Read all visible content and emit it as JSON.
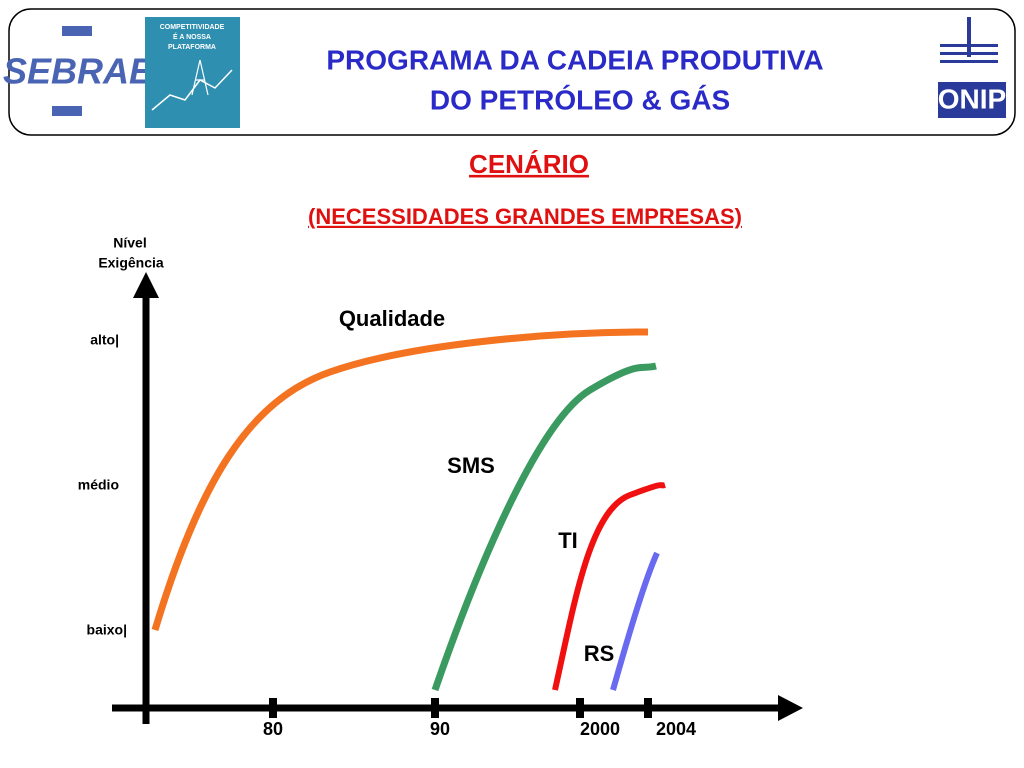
{
  "header": {
    "logo_left": "SEBRAE",
    "book_cover": [
      "COMPETITIVIDADE",
      "É A NOSSA",
      "PLATAFORMA"
    ],
    "title": [
      "PROGRAMA DA CADEIA PRODUTIVA",
      "DO PETRÓLEO & GÁS"
    ],
    "logo_right": "ONIP"
  },
  "heading": "CENÁRIO",
  "subheading": "(NECESSIDADES GRANDES EMPRESAS)",
  "diagram": {
    "y_title": [
      "Nível",
      "Exigência"
    ],
    "y_levels": [
      "alto|",
      "médio",
      "baixo|"
    ],
    "x_ticks": [
      "80",
      "90",
      "2000",
      "2004"
    ],
    "curves": [
      "Qualidade",
      "SMS",
      "TI",
      "RS"
    ]
  }
}
